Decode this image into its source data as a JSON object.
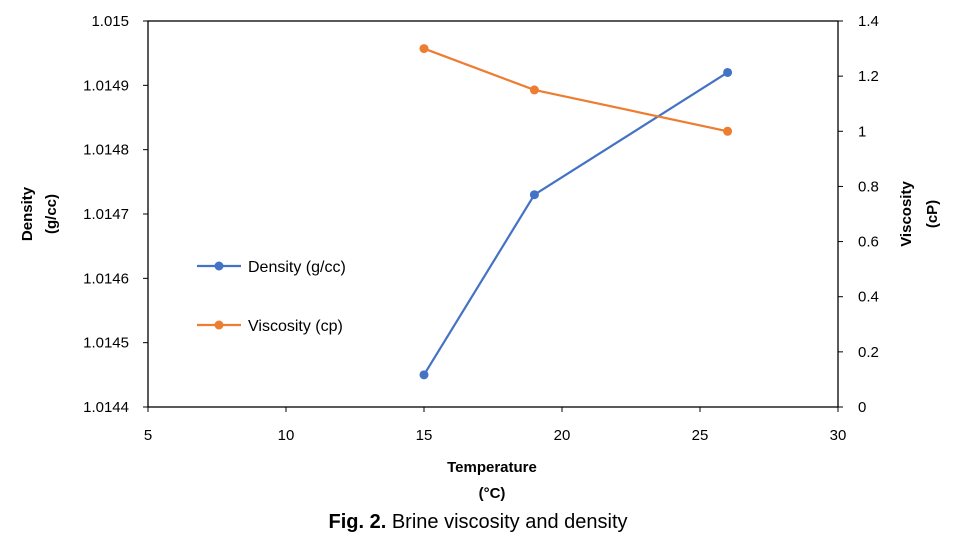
{
  "chart_data": {
    "type": "line",
    "xlabel": "Temperature",
    "xlabel_unit": "(°C)",
    "ylabel_left": "Density",
    "ylabel_left_unit": "(g/cc)",
    "ylabel_right": "Viscosity",
    "ylabel_right_unit": "(cP)",
    "xlim": [
      5,
      30
    ],
    "xticks": [
      "5",
      "10",
      "15",
      "20",
      "25",
      "30"
    ],
    "ylim_left": [
      1.0144,
      1.015
    ],
    "yticks_left": [
      "1.0144",
      "1.0145",
      "1.0146",
      "1.0147",
      "1.0148",
      "1.0149",
      "1.015"
    ],
    "ylim_right": [
      0,
      1.4
    ],
    "yticks_right": [
      "0",
      "0.2",
      "0.4",
      "0.6",
      "0.8",
      "1",
      "1.2",
      "1.4"
    ],
    "grid": false,
    "legend_position": "left",
    "series": [
      {
        "name": "Density (g/cc)",
        "axis": "left",
        "color": "#4472C4",
        "x": [
          15,
          19,
          26
        ],
        "y": [
          1.01445,
          1.01473,
          1.01492
        ]
      },
      {
        "name": "Viscosity (cp)",
        "axis": "right",
        "color": "#ED7D31",
        "x": [
          15,
          19,
          26
        ],
        "y": [
          1.3,
          1.15,
          1.0
        ]
      }
    ]
  },
  "caption": {
    "label": "Fig. 2.",
    "text": " Brine viscosity and density"
  }
}
